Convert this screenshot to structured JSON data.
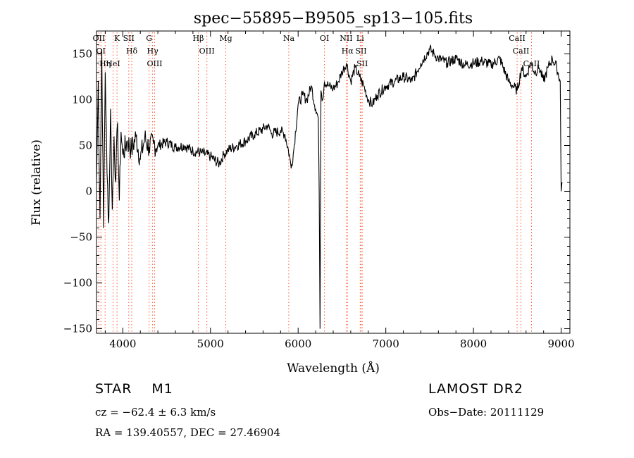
{
  "chart_data": {
    "type": "line",
    "title": "spec−55895−B9505_sp13−105.fits",
    "xlabel": "Wavelength (Å)",
    "ylabel": "Flux (relative)",
    "xlim": [
      3700,
      9100
    ],
    "ylim": [
      -155,
      175
    ],
    "xticks": [
      4000,
      5000,
      6000,
      7000,
      8000,
      9000
    ],
    "xtick_labels": [
      "4000",
      "5000",
      "6000",
      "7000",
      "8000",
      "9000"
    ],
    "yticks": [
      -150,
      -100,
      -50,
      0,
      50,
      100,
      150
    ],
    "ytick_labels": [
      "−150",
      "−100",
      "−50",
      "0",
      "50",
      "100",
      "150"
    ],
    "grid": false,
    "line_color": "#000000",
    "marker_color": "#ff5a36",
    "series": [
      {
        "x": [
          3700,
          3720,
          3740,
          3760,
          3780,
          3800,
          3820,
          3840,
          3860,
          3880,
          3900,
          3920,
          3940,
          3960,
          3980,
          4000,
          4050,
          4100,
          4150,
          4200,
          4250,
          4300,
          4350,
          4400,
          4500,
          4600,
          4700,
          4800,
          4900,
          5000,
          5100,
          5150,
          5200,
          5300,
          5400,
          5500,
          5600,
          5650,
          5700,
          5800,
          5850,
          5900,
          5920,
          5950,
          6000,
          6050,
          6100,
          6150,
          6200,
          6230,
          6240,
          6250,
          6260,
          6280,
          6300,
          6350,
          6400,
          6450,
          6500,
          6550,
          6600,
          6650,
          6700,
          6750,
          6800,
          6850,
          6900,
          7000,
          7100,
          7200,
          7300,
          7400,
          7500,
          7550,
          7600,
          7700,
          7800,
          7900,
          8000,
          8100,
          8200,
          8300,
          8400,
          8450,
          8500,
          8550,
          8600,
          8650,
          8700,
          8750,
          8800,
          8850,
          8900,
          8950,
          8990,
          9000,
          9010
        ],
        "y": [
          10,
          120,
          -30,
          155,
          -40,
          130,
          20,
          -35,
          90,
          -20,
          60,
          10,
          75,
          -10,
          65,
          40,
          55,
          45,
          60,
          35,
          58,
          48,
          52,
          50,
          54,
          48,
          50,
          44,
          42,
          38,
          30,
          40,
          45,
          50,
          55,
          62,
          68,
          72,
          63,
          66,
          62,
          40,
          25,
          45,
          95,
          105,
          100,
          115,
          90,
          80,
          0,
          -150,
          110,
          100,
          120,
          115,
          112,
          118,
          130,
          140,
          120,
          135,
          125,
          115,
          100,
          95,
          105,
          115,
          120,
          125,
          120,
          140,
          155,
          150,
          145,
          140,
          145,
          138,
          140,
          142,
          138,
          145,
          120,
          115,
          110,
          135,
          125,
          140,
          130,
          135,
          120,
          135,
          145,
          135,
          120,
          0,
          10
        ]
      }
    ],
    "line_markers": [
      {
        "wavelength": 3727,
        "label": "OII"
      },
      {
        "wavelength": 3750,
        "label": "OI"
      },
      {
        "wavelength": 3798,
        "label": "Hη"
      },
      {
        "wavelength": 3889,
        "label": "HeI"
      },
      {
        "wavelength": 3934,
        "label": "K"
      },
      {
        "wavelength": 4068,
        "label": "SII"
      },
      {
        "wavelength": 4102,
        "label": "Hδ"
      },
      {
        "wavelength": 4300,
        "label": "G"
      },
      {
        "wavelength": 4340,
        "label": "Hγ"
      },
      {
        "wavelength": 4363,
        "label": "OIII"
      },
      {
        "wavelength": 4861,
        "label": "Hβ"
      },
      {
        "wavelength": 4959,
        "label": "OIII"
      },
      {
        "wavelength": 5175,
        "label": "Mg"
      },
      {
        "wavelength": 5893,
        "label": "Na"
      },
      {
        "wavelength": 6300,
        "label": "OI"
      },
      {
        "wavelength": 6548,
        "label": "NII"
      },
      {
        "wavelength": 6563,
        "label": "Hα"
      },
      {
        "wavelength": 6708,
        "label": "Li"
      },
      {
        "wavelength": 6717,
        "label": "SII"
      },
      {
        "wavelength": 6731,
        "label": "SII"
      },
      {
        "wavelength": 8498,
        "label": "CaII"
      },
      {
        "wavelength": 8542,
        "label": "CaII"
      },
      {
        "wavelength": 8662,
        "label": "CaII"
      }
    ]
  },
  "info": {
    "object_class": "STAR",
    "subclass": "M1",
    "survey": "LAMOST DR2",
    "cz": "cz = −62.4 ± 6.3 km/s",
    "obs_date": "Obs−Date: 20111129",
    "radec": "RA = 139.40557, DEC =  27.46904"
  }
}
